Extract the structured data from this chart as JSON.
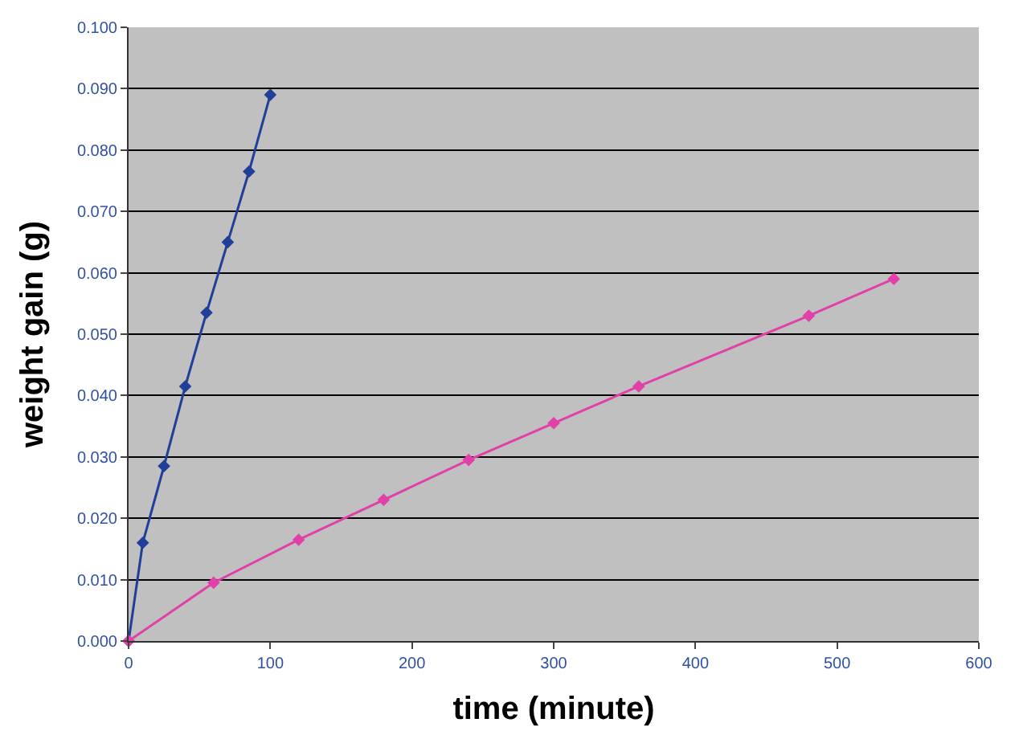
{
  "chart_data": {
    "type": "line",
    "xlabel": "time (minute)",
    "ylabel": "weight gain (g)",
    "series": [
      {
        "color": "#1f3f99",
        "x": [
          0,
          10,
          25,
          40,
          55,
          70,
          85,
          100
        ],
        "values": [
          0,
          0.016,
          0.0285,
          0.0415,
          0.0535,
          0.065,
          0.0765,
          0.089
        ]
      },
      {
        "color": "#e040a8",
        "x": [
          0,
          60,
          120,
          180,
          240,
          300,
          360,
          480,
          540
        ],
        "values": [
          0,
          0.0095,
          0.0165,
          0.023,
          0.0295,
          0.0355,
          0.0415,
          0.053,
          0.059
        ]
      }
    ],
    "xlim": [
      0,
      600
    ],
    "xticks": [
      0,
      100,
      200,
      300,
      400,
      500,
      600
    ],
    "ylim": [
      0,
      0.1
    ],
    "yticks": [
      {
        "value": 0,
        "label": "0.000"
      },
      {
        "value": 0.01,
        "label": "0.010"
      },
      {
        "value": 0.02,
        "label": "0.020"
      },
      {
        "value": 0.03,
        "label": "0.030"
      },
      {
        "value": 0.04,
        "label": "0.040"
      },
      {
        "value": 0.05,
        "label": "0.050"
      },
      {
        "value": 0.06,
        "label": "0.060"
      },
      {
        "value": 0.07,
        "label": "0.070"
      },
      {
        "value": 0.08,
        "label": "0.080"
      },
      {
        "value": 0.09,
        "label": "0.090"
      },
      {
        "value": 0.1,
        "label": "0.100"
      }
    ],
    "grid": "y",
    "marker": "diamond",
    "line_style": "solid"
  }
}
